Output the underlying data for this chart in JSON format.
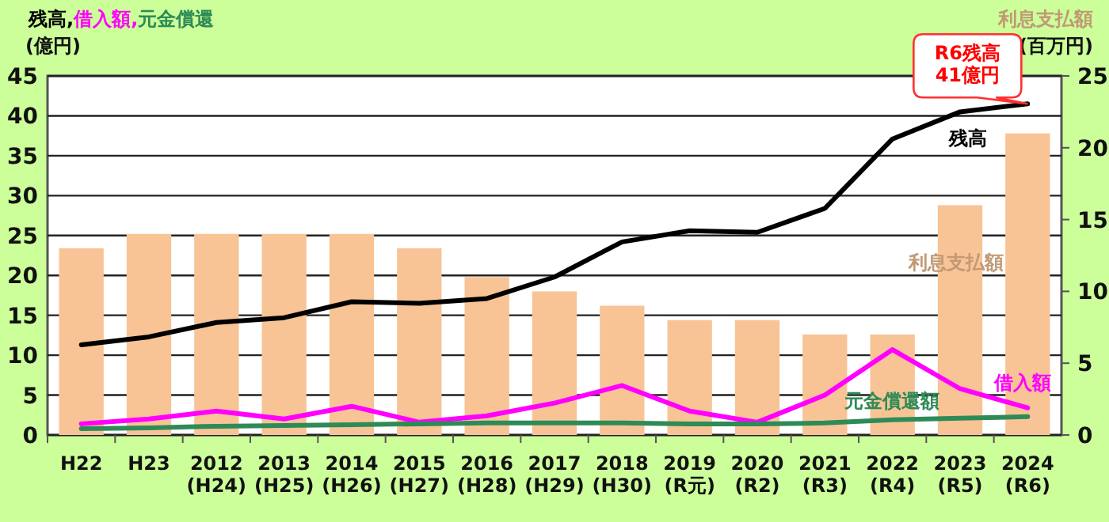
{
  "chart_data": {
    "type": "line",
    "ylabel": "残高,借入額,元金償還\n(億円)",
    "y2label": "利息支払額\n(百万円)",
    "categories": [
      "H22",
      "H23",
      "2012\n(H24)",
      "2013\n(H25)",
      "2014\n(H26)",
      "2015\n(H27)",
      "2016\n(H28)",
      "2017\n(H29)",
      "2018\n(H30)",
      "2019\n(R元)",
      "2020\n(R2)",
      "2021\n(R3)",
      "2022\n(R4)",
      "2023\n(R5)",
      "2024\n(R6)"
    ],
    "series": [
      {
        "name": "利息支払額",
        "type": "bar",
        "axis": "y2",
        "color": "#f8c496",
        "values": [
          13,
          14,
          14,
          14,
          14,
          13,
          11,
          10,
          9,
          8,
          8,
          7,
          7,
          16,
          21
        ]
      },
      {
        "name": "残高",
        "color": "#000000",
        "values": [
          11.3,
          12.3,
          14.1,
          14.7,
          16.7,
          16.5,
          17.1,
          19.8,
          24.2,
          25.6,
          25.4,
          28.4,
          37.1,
          40.5,
          41.5
        ]
      },
      {
        "name": "借入額",
        "color": "#ff00ff",
        "values": [
          1.4,
          2.0,
          3.0,
          2.0,
          3.6,
          1.6,
          2.4,
          4.0,
          6.2,
          3.0,
          1.6,
          5.0,
          10.7,
          5.8,
          3.4
        ]
      },
      {
        "name": "元金償還額",
        "color": "#2e8b57",
        "values": [
          0.8,
          0.9,
          1.1,
          1.2,
          1.3,
          1.4,
          1.5,
          1.5,
          1.5,
          1.4,
          1.4,
          1.5,
          1.9,
          2.1,
          2.3
        ]
      }
    ],
    "ylim": [
      0,
      45
    ],
    "yticks": [
      0,
      5,
      10,
      15,
      20,
      25,
      30,
      35,
      40,
      45
    ],
    "y2lim": [
      0,
      25
    ],
    "y2ticks": [
      0,
      5,
      10,
      15,
      20,
      25
    ],
    "grid": "y",
    "legend": false,
    "annotations": [
      {
        "text": "R6残高\n41億円",
        "x": "2024\n(R6)",
        "y": 41.5
      }
    ]
  }
}
